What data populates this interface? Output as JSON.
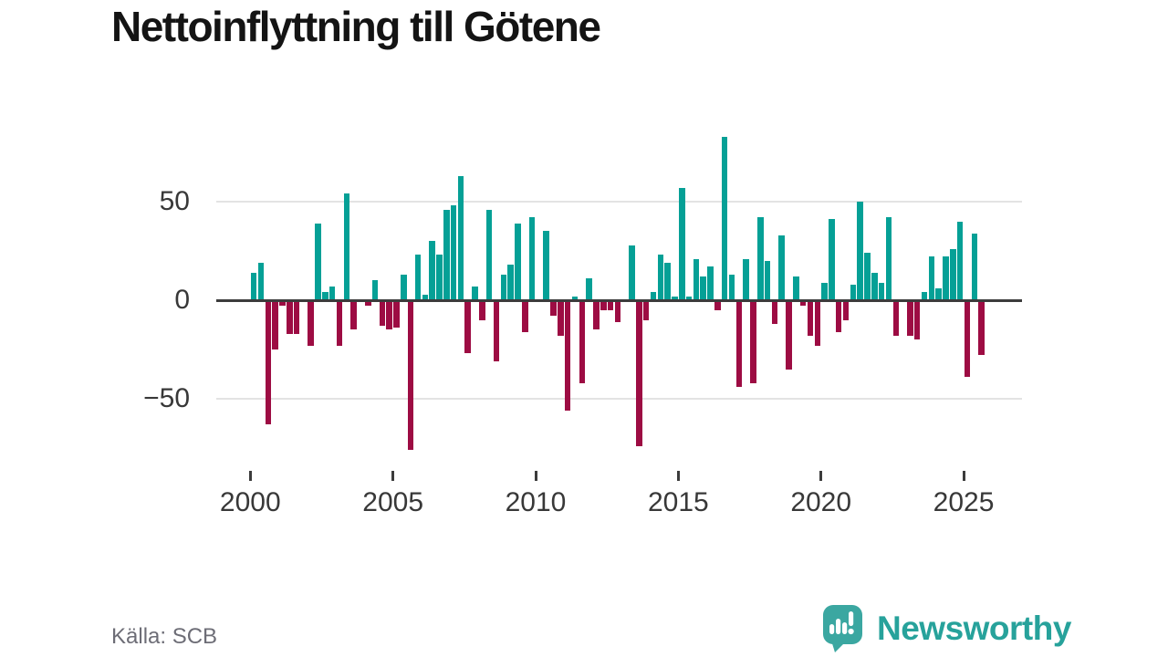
{
  "header": {
    "title": "Nettoinflyttning till Götene"
  },
  "footer": {
    "source": "Källa: SCB",
    "brand_name": "Newsworthy",
    "brand_icon": "newsworthy-speech-bubble-chart-icon"
  },
  "colors": {
    "positive": "#05a096",
    "negative": "#9d0c43",
    "zero_axis": "#3c3c3c",
    "grid": "#e3e3e3",
    "axis_text": "#383838",
    "muted_text": "#6d6d76",
    "brand": "#27a29b",
    "brand_bubble": "#3ba7a1",
    "title_text": "#141414"
  },
  "chart_data": {
    "type": "bar",
    "title": "Nettoinflyttning till Götene",
    "frequency": "quarterly",
    "start_year": 2000,
    "start_quarter": 1,
    "end_label": "2025 Q3",
    "values": [
      14,
      19,
      -63,
      -25,
      -3,
      -17,
      -17,
      0,
      -23,
      39,
      4,
      7,
      -23,
      54,
      -15,
      0,
      -3,
      10,
      -13,
      -15,
      -14,
      13,
      -76,
      23,
      3,
      30,
      23,
      46,
      48,
      63,
      -27,
      7,
      -10,
      46,
      -31,
      13,
      18,
      39,
      -16,
      42,
      0,
      35,
      -8,
      -18,
      -56,
      2,
      -42,
      11,
      -15,
      -5,
      -5,
      -11,
      0,
      28,
      -74,
      -10,
      4,
      23,
      19,
      2,
      57,
      2,
      21,
      12,
      17,
      -5,
      83,
      13,
      -44,
      21,
      -42,
      42,
      20,
      -12,
      33,
      -35,
      12,
      -3,
      -18,
      -23,
      9,
      41,
      -16,
      -10,
      8,
      50,
      24,
      14,
      9,
      42,
      -18,
      0,
      -18,
      -20,
      4,
      22,
      6,
      22,
      26,
      40,
      -39,
      34,
      -28
    ],
    "xlabel": "",
    "ylabel": "",
    "y_axis": {
      "ticks": [
        {
          "label": "50",
          "value": 50
        },
        {
          "label": "0",
          "value": 0
        },
        {
          "label": "−50",
          "value": -50
        }
      ],
      "range": [
        -85,
        95
      ]
    },
    "x_axis": {
      "ticks": [
        {
          "label": "2000",
          "value": 2000
        },
        {
          "label": "2005",
          "value": 2005
        },
        {
          "label": "2010",
          "value": 2010
        },
        {
          "label": "2015",
          "value": 2015
        },
        {
          "label": "2020",
          "value": 2020
        },
        {
          "label": "2025",
          "value": 2025
        }
      ]
    },
    "legend": "none",
    "grid": "horizontal"
  }
}
